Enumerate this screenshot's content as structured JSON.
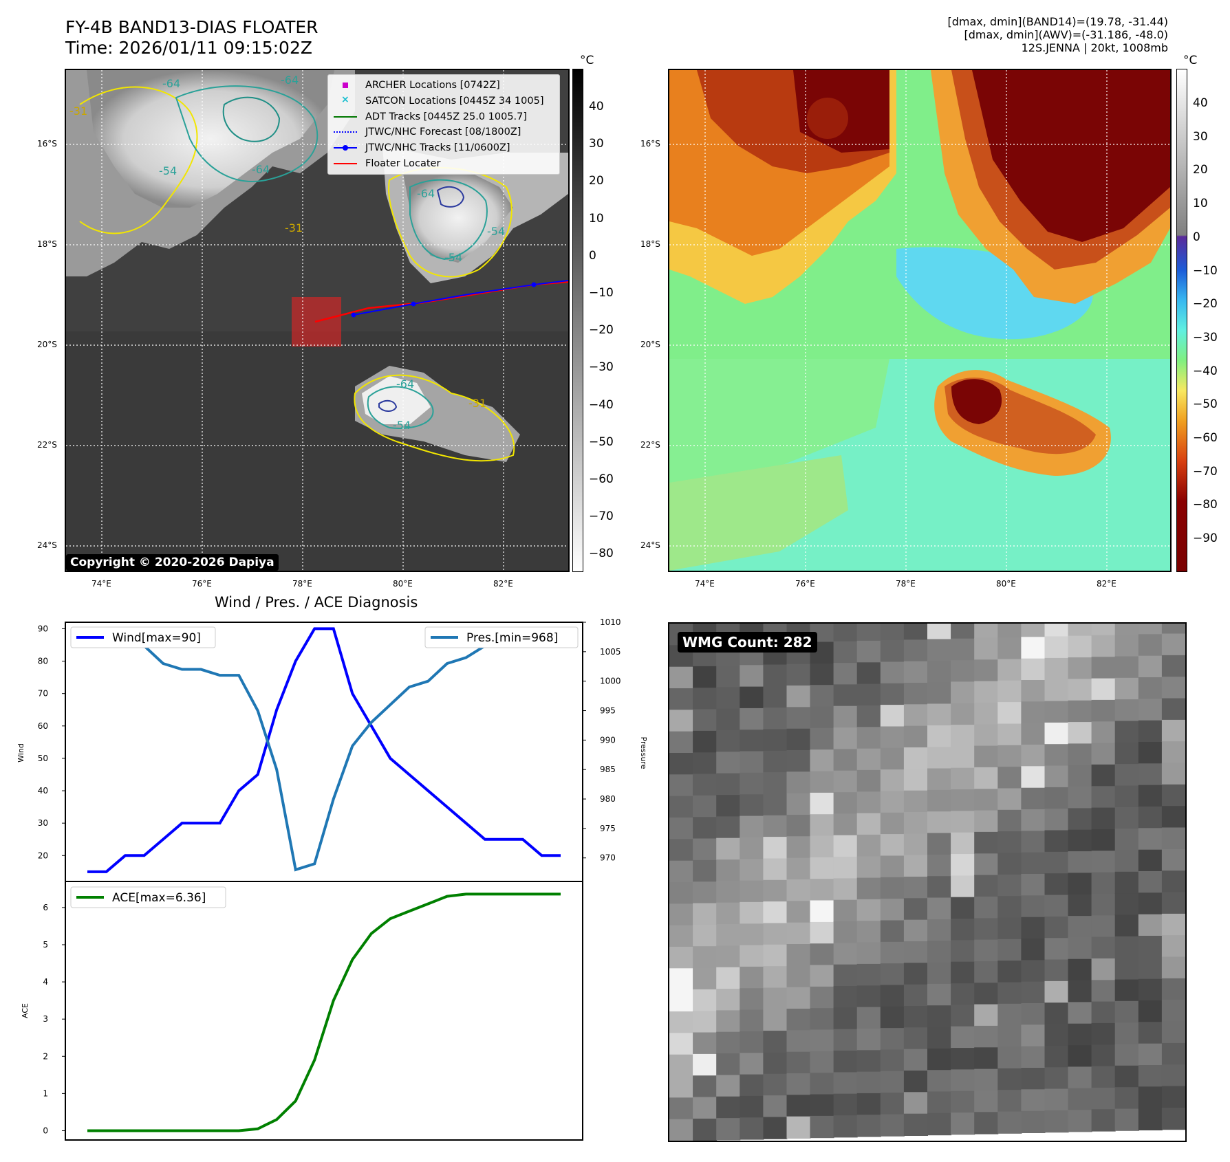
{
  "header": {
    "title_line1": "FY-4B BAND13-DIAS FLOATER",
    "title_line2": "Time: 2026/01/11 09:15:02Z",
    "right_line1": "[dmax, dmin](BAND14)=(19.78, -31.44)",
    "right_line2": "[dmax, dmin](AWV)=(-31.186, -48.0)",
    "right_line3": "12S.JENNA | 20kt, 1008mb"
  },
  "map": {
    "lat_labels": [
      "16°S",
      "18°S",
      "20°S",
      "22°S",
      "24°S"
    ],
    "lon_labels": [
      "74°E",
      "76°E",
      "78°E",
      "80°E",
      "82°E"
    ],
    "contour_labels": [
      "-64",
      "-64",
      "-54",
      "-64",
      "-31",
      "-31",
      "-54",
      "-64",
      "-54",
      "-31",
      "-54",
      "-64"
    ],
    "copyright": "Copyright © 2020-2026 Dapiya",
    "legend": [
      {
        "label": "ARCHER Locations [0742Z]",
        "color": "#cc00cc",
        "kind": "square"
      },
      {
        "label": "SATCON Locations [0445Z 34 1005]",
        "color": "#17becf",
        "kind": "x"
      },
      {
        "label": "ADT Tracks [0445Z 25.0 1005.7]",
        "color": "#007700",
        "kind": "line"
      },
      {
        "label": "JTWC/NHC Forecast [08/1800Z]",
        "color": "#0000ff",
        "kind": "dotted"
      },
      {
        "label": "JTWC/NHC Tracks [11/0600Z]",
        "color": "#0000ff",
        "kind": "line-dot"
      },
      {
        "label": "Floater Locater",
        "color": "#ff0000",
        "kind": "line"
      }
    ]
  },
  "colorbar_gray": {
    "unit": "°C",
    "ticks": [
      "40",
      "30",
      "20",
      "10",
      "0",
      "−10",
      "−20",
      "−30",
      "−40",
      "−50",
      "−60",
      "−70",
      "−80"
    ]
  },
  "colorbar_color": {
    "unit": "°C",
    "ticks": [
      "40",
      "30",
      "20",
      "10",
      "0",
      "−10",
      "−20",
      "−30",
      "−40",
      "−50",
      "−60",
      "−70",
      "−80",
      "−90"
    ]
  },
  "wmg": {
    "label": "WMG Count: 282"
  },
  "colors": {
    "wind": "#0000ff",
    "pressure": "#1f77b4",
    "ace": "#008000",
    "track_red": "#ff0000",
    "track_blue": "#0000ff"
  },
  "chart_data": [
    {
      "type": "line",
      "title": "Wind / Pres. / ACE Diagnosis",
      "ylabel": "Wind",
      "y2label": "Pressure",
      "ylim": [
        12,
        92
      ],
      "y2lim": [
        966,
        1010
      ],
      "yticks": [
        20,
        30,
        40,
        50,
        60,
        70,
        80,
        90
      ],
      "y2ticks": [
        970,
        975,
        980,
        985,
        990,
        995,
        1000,
        1005,
        1010
      ],
      "series": [
        {
          "name": "Wind[max=90]",
          "axis": "left",
          "values": [
            15,
            15,
            20,
            20,
            25,
            30,
            30,
            30,
            40,
            45,
            65,
            80,
            90,
            90,
            70,
            60,
            50,
            45,
            40,
            35,
            30,
            25,
            25,
            25,
            20,
            20
          ]
        },
        {
          "name": "Pres.[min=968]",
          "axis": "right",
          "values": [
            1007,
            1007,
            1007,
            1006,
            1003,
            1002,
            1002,
            1001,
            1001,
            995,
            985,
            968,
            969,
            980,
            989,
            993,
            996,
            999,
            1000,
            1003,
            1004,
            1006,
            1007,
            1008,
            1008,
            1008
          ]
        }
      ]
    },
    {
      "type": "line",
      "ylabel": "ACE",
      "ylim": [
        -0.25,
        6.7
      ],
      "yticks": [
        0,
        1,
        2,
        3,
        4,
        5,
        6
      ],
      "series": [
        {
          "name": "ACE[max=6.36]",
          "values": [
            0,
            0,
            0,
            0,
            0,
            0,
            0,
            0,
            0,
            0.05,
            0.3,
            0.8,
            1.9,
            3.5,
            4.6,
            5.3,
            5.7,
            5.9,
            6.1,
            6.3,
            6.36,
            6.36,
            6.36,
            6.36,
            6.36,
            6.36
          ]
        }
      ]
    }
  ]
}
